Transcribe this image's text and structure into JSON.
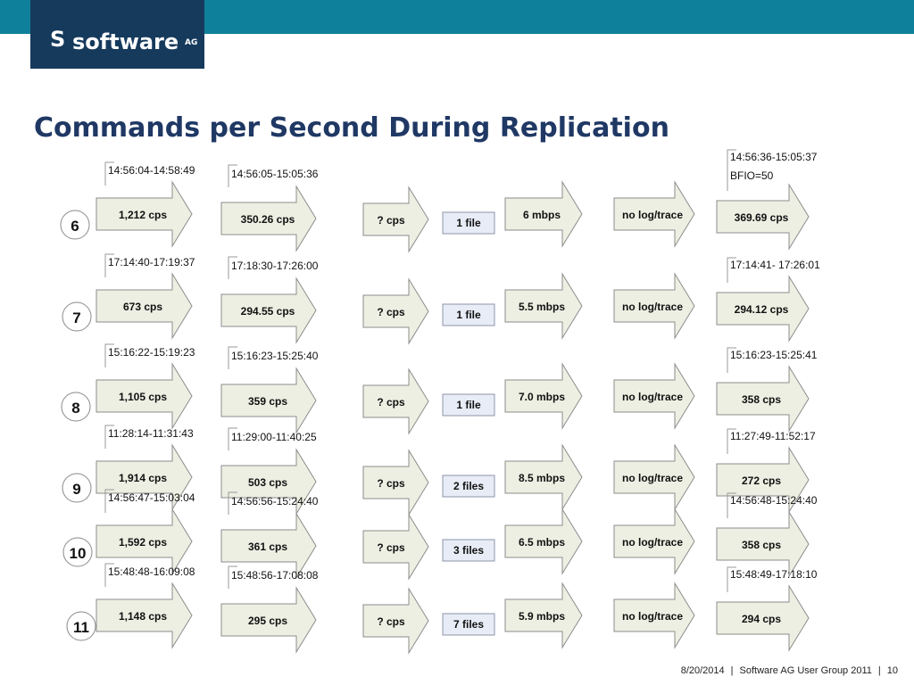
{
  "brand": {
    "mark": "S",
    "name": "software",
    "suffix": "AG"
  },
  "title": "Commands per Second During Replication",
  "rows": [
    {
      "number": "6",
      "source_time": "14:56:04-14:58:49",
      "source_cps": "1,212 cps",
      "stage2_time": "14:56:05-15:05:36",
      "stage2_cps": "350.26 cps",
      "stage3_cps": "? cps",
      "files": "1 file",
      "bandwidth": "6  mbps",
      "log_status": "no log/trace",
      "target_time": "14:56:36-15:05:37",
      "target_note": "BFIO=50",
      "target_cps": "369.69 cps"
    },
    {
      "number": "7",
      "source_time": "17:14:40-17:19:37",
      "source_cps": "673 cps",
      "stage2_time": "17:18:30-17:26:00",
      "stage2_cps": "294.55 cps",
      "stage3_cps": "? cps",
      "files": "1 file",
      "bandwidth": "5.5 mbps",
      "log_status": "no log/trace",
      "target_time": "17:14:41- 17:26:01",
      "target_note": "",
      "target_cps": "294.12 cps"
    },
    {
      "number": "8",
      "source_time": "15:16:22-15:19:23",
      "source_cps": "1,105 cps",
      "stage2_time": "15:16:23-15:25:40",
      "stage2_cps": "359 cps",
      "stage3_cps": "? cps",
      "files": "1 file",
      "bandwidth": "7.0 mbps",
      "log_status": "no log/trace",
      "target_time": "15:16:23-15:25:41",
      "target_note": "",
      "target_cps": "358 cps"
    },
    {
      "number": "9",
      "source_time": "11:28:14-11:31:43",
      "source_cps": "1,914 cps",
      "stage2_time": "11:29:00-11:40:25",
      "stage2_cps": "503 cps",
      "stage3_cps": "? cps",
      "files": "2 files",
      "bandwidth": "8.5 mbps",
      "log_status": "no log/trace",
      "target_time": "11:27:49-11:52:17",
      "target_note": "",
      "target_cps": "272 cps"
    },
    {
      "number": "10",
      "source_time": "14:56:47-15:03:04",
      "source_cps": "1,592 cps",
      "stage2_time": "14:56:56-15:24:40",
      "stage2_cps": "361 cps",
      "stage3_cps": "? cps",
      "files": "3 files",
      "bandwidth": "6.5 mbps",
      "log_status": "no log/trace",
      "target_time": "14:56:48-15:24:40",
      "target_note": "",
      "target_cps": "358 cps"
    },
    {
      "number": "11",
      "source_time": "15:48:48-16:09:08",
      "source_cps": "1,148 cps",
      "stage2_time": "15:48:56-17:08:08",
      "stage2_cps": "295 cps",
      "stage3_cps": "? cps",
      "files": "7 files",
      "bandwidth": "5.9 mbps",
      "log_status": "no log/trace",
      "target_time": "15:48:49-17:18:10",
      "target_note": "",
      "target_cps": "294 cps"
    }
  ],
  "footer": {
    "date": "8/20/2014",
    "separator": "|",
    "event": "Software AG User Group 2011",
    "page": "10"
  }
}
